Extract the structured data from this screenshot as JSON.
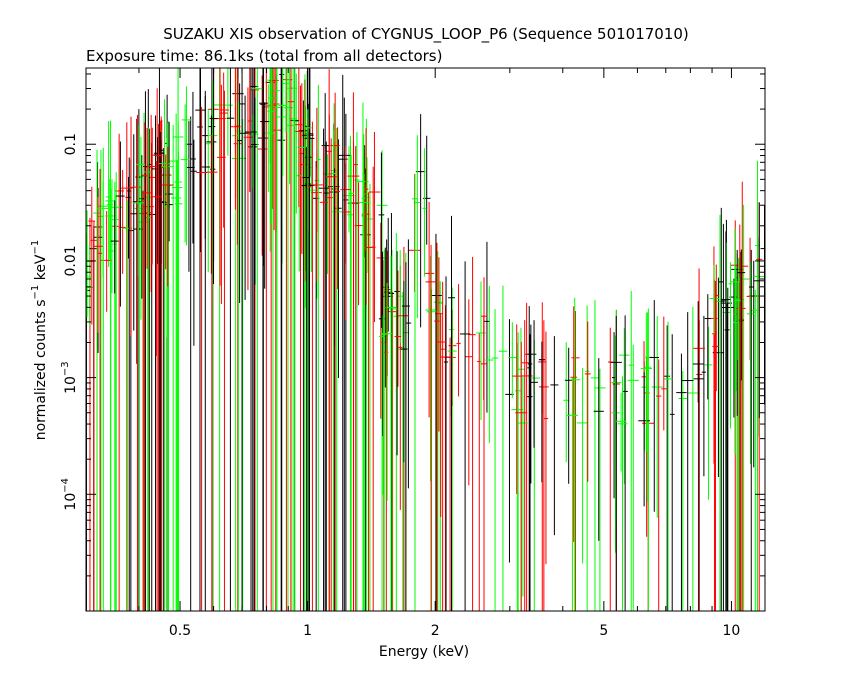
{
  "chart_data": {
    "type": "scatter",
    "title": "SUZAKU XIS observation of CYGNUS_LOOP_P6 (Sequence 501017010)",
    "subtitle": "Exposure time: 86.1ks (total from all detectors)",
    "xlabel": "Energy (keV)",
    "ylabel_prefix": "normalized counts s",
    "ylabel_sup1": "−1",
    "ylabel_mid": " keV",
    "ylabel_sup2": "−1",
    "x_scale": "log",
    "y_scale": "log",
    "xlim": [
      0.3,
      12
    ],
    "ylim": [
      1e-05,
      0.45
    ],
    "x_ticks": [
      {
        "value": 0.5,
        "label": "0.5"
      },
      {
        "value": 1,
        "label": "1"
      },
      {
        "value": 2,
        "label": "2"
      },
      {
        "value": 5,
        "label": "5"
      },
      {
        "value": 10,
        "label": "10"
      }
    ],
    "y_ticks": [
      {
        "value": 0.1,
        "label": "0.1"
      },
      {
        "value": 0.01,
        "label": "0.01"
      },
      {
        "value": 0.001,
        "label_base": "10",
        "label_exp": "−3"
      },
      {
        "value": 0.0001,
        "label_base": "10",
        "label_exp": "−4"
      }
    ],
    "grid": false,
    "series": [
      {
        "color": "#000000"
      },
      {
        "color": "#ff0000"
      },
      {
        "color": "#00ff00"
      }
    ]
  }
}
